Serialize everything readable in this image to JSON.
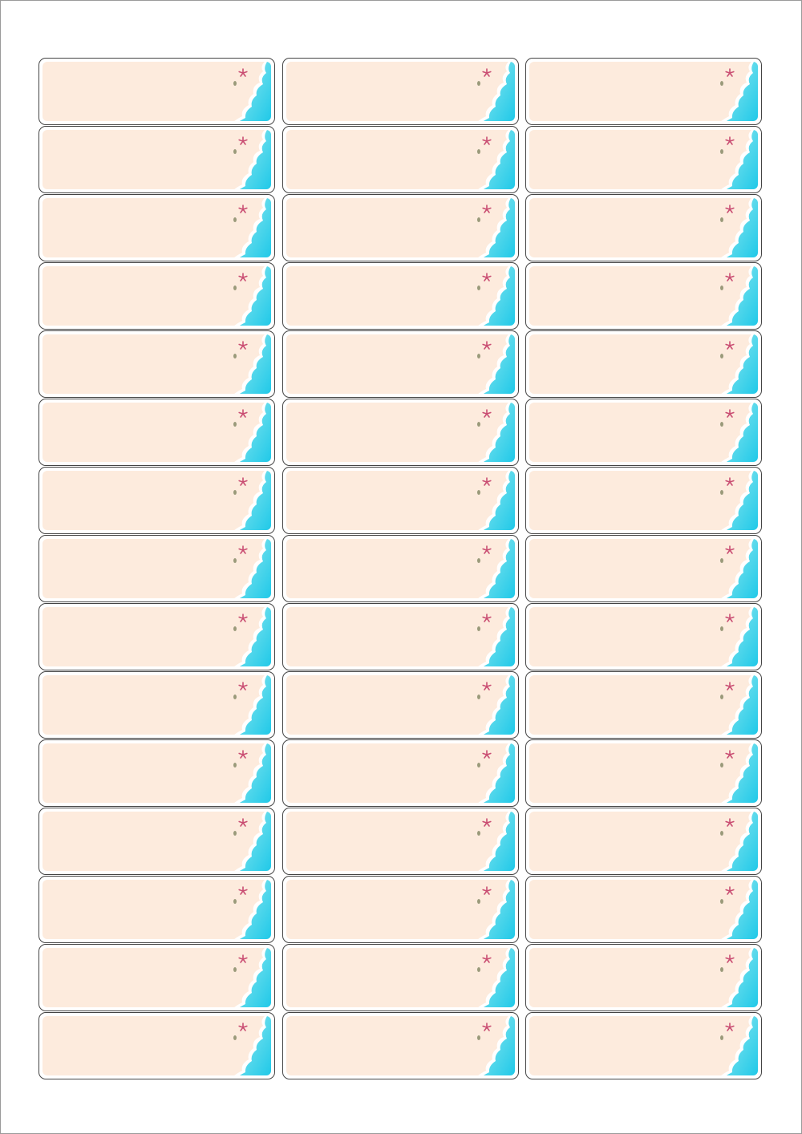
{
  "sheet": {
    "rows": 15,
    "columns": 3,
    "label_design": {
      "background_color": "#fdebdd",
      "water_color": "#3fd6e6",
      "water_deep_color": "#1ec8e8",
      "foam_color": "#ffffff",
      "starfish_color": "#c94d72",
      "shell_color": "#9a9a7a",
      "icons": [
        "starfish-icon",
        "seashell-icon",
        "ocean-wave-graphic"
      ]
    }
  }
}
